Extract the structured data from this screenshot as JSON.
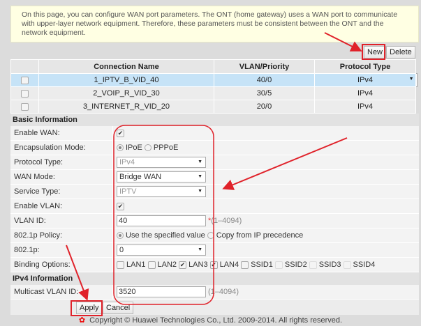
{
  "notice": "On this page, you can configure WAN port parameters. The ONT (home gateway) uses a WAN port to communicate with upper-layer network equipment. Therefore, these parameters must be consistent between the ONT and the network equipment.",
  "toolbar": {
    "new": "New",
    "delete": "Delete"
  },
  "table": {
    "headers": [
      "Connection Name",
      "VLAN/Priority",
      "Protocol Type"
    ],
    "rows": [
      {
        "name": "1_IPTV_B_VID_40",
        "vlan": "40/0",
        "proto": "IPv4",
        "selected": true
      },
      {
        "name": "2_VOIP_R_VID_30",
        "vlan": "30/5",
        "proto": "IPv4"
      },
      {
        "name": "3_INTERNET_R_VID_20",
        "vlan": "20/0",
        "proto": "IPv4"
      }
    ]
  },
  "basic": {
    "title": "Basic Information",
    "enable_wan": {
      "label": "Enable WAN:",
      "checked": true
    },
    "encap": {
      "label": "Encapsulation Mode:",
      "options": [
        "IPoE",
        "PPPoE"
      ],
      "selected": "IPoE"
    },
    "protocol": {
      "label": "Protocol Type:",
      "value": "IPv4"
    },
    "wan_mode": {
      "label": "WAN Mode:",
      "value": "Bridge WAN"
    },
    "service": {
      "label": "Service Type:",
      "value": "IPTV"
    },
    "enable_vlan": {
      "label": "Enable VLAN:",
      "checked": true
    },
    "vlan_id": {
      "label": "VLAN ID:",
      "value": "40",
      "required": "*",
      "range": "(1–4094)"
    },
    "policy": {
      "label": "802.1p Policy:",
      "options": [
        "Use the specified value",
        "Copy from IP precedence"
      ],
      "selected": "Use the specified value"
    },
    "p8021": {
      "label": "802.1p:",
      "value": "0"
    },
    "binding": {
      "label": "Binding Options:",
      "options": [
        {
          "name": "LAN1",
          "checked": false
        },
        {
          "name": "LAN2",
          "checked": false
        },
        {
          "name": "LAN3",
          "checked": true
        },
        {
          "name": "LAN4",
          "checked": true
        },
        {
          "name": "SSID1",
          "checked": false
        },
        {
          "name": "SSID2",
          "checked": false
        },
        {
          "name": "SSID3",
          "checked": false
        },
        {
          "name": "SSID4",
          "checked": false
        }
      ]
    }
  },
  "ipv4": {
    "title": "IPv4 Information",
    "multicast": {
      "label": "Multicast VLAN ID:",
      "value": "3520",
      "range": "(1–4094)"
    }
  },
  "actions": {
    "apply": "Apply",
    "cancel": "Cancel"
  },
  "footer": "Copyright © Huawei Technologies Co., Ltd. 2009-2014. All rights reserved.",
  "colors": {
    "annotation": "#e0222a",
    "selected_row": "#c6e3f7",
    "notice_bg": "#ffffe3"
  }
}
